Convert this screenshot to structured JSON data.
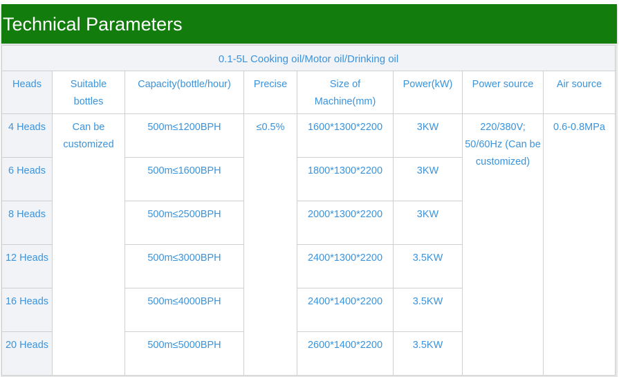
{
  "title": "Technical Parameters",
  "caption": "0.1-5L Cooking oil/Motor oil/Drinking oil",
  "colors": {
    "banner": "#127d0c",
    "text": "#3a93dc",
    "shaded": "#f2f3f7"
  },
  "headers": [
    "Heads",
    "Suitable bottles",
    "Capacity(bottle/hour)",
    "Precise",
    "Size of Machine(mm)",
    "Power(kW)",
    "Power source",
    "Air source"
  ],
  "shared": {
    "suitable_bottles": "Can be customized",
    "precise": "≤0.5%",
    "power_source": "220/380V; 50/60Hz (Can be customized)",
    "air_source": "0.6-0.8MPa"
  },
  "rows": [
    {
      "heads": "4 Heads",
      "capacity": "500m≤1200BPH",
      "size": "1600*1300*2200",
      "power": "3KW"
    },
    {
      "heads": "6 Heads",
      "capacity": "500m≤1600BPH",
      "size": "1800*1300*2200",
      "power": "3KW"
    },
    {
      "heads": "8 Heads",
      "capacity": "500m≤2500BPH",
      "size": "2000*1300*2200",
      "power": "3KW"
    },
    {
      "heads": "12 Heads",
      "capacity": "500m≤3000BPH",
      "size": "2400*1300*2200",
      "power": "3.5KW"
    },
    {
      "heads": "16 Heads",
      "capacity": "500m≤4000BPH",
      "size": "2400*1400*2200",
      "power": "3.5KW"
    },
    {
      "heads": "20 Heads",
      "capacity": "500m≤5000BPH",
      "size": "2600*1400*2200",
      "power": "3.5KW"
    }
  ]
}
